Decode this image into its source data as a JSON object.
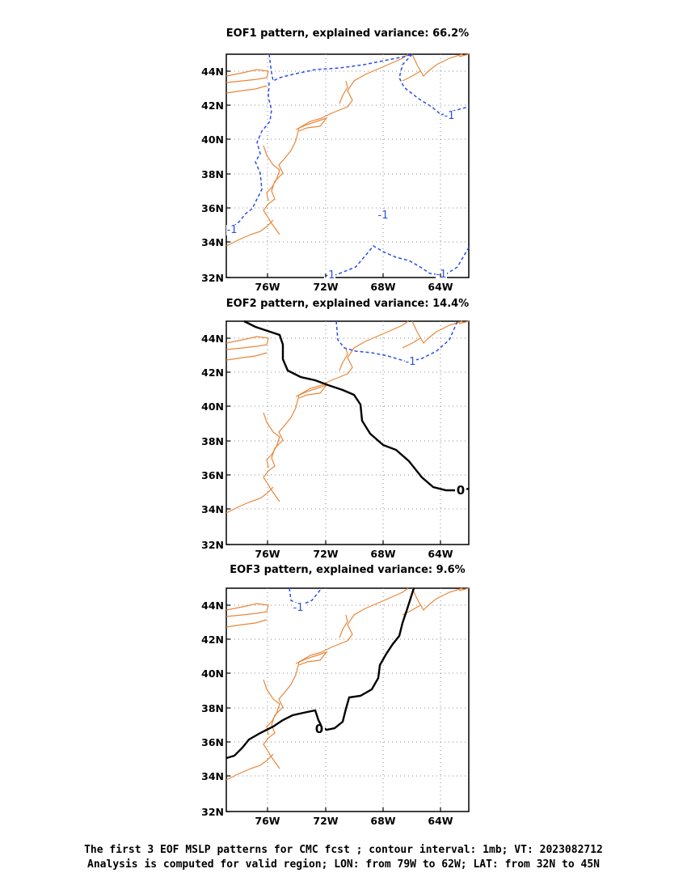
{
  "panels": [
    {
      "title": "EOF1 pattern, explained variance: 66.2%",
      "contour_labels": [
        "-1",
        "-1",
        "-1",
        "-1",
        "-1"
      ]
    },
    {
      "title": "EOF2 pattern, explained variance: 14.4%",
      "contour_labels": [
        "-1",
        "0"
      ]
    },
    {
      "title": "EOF3 pattern, explained variance: 9.6%",
      "contour_labels": [
        "-1",
        "0"
      ]
    }
  ],
  "lat_ticks": [
    "44N",
    "42N",
    "40N",
    "38N",
    "36N",
    "34N",
    "32N"
  ],
  "lon_ticks": [
    "76W",
    "72W",
    "68W",
    "64W"
  ],
  "colors": {
    "coastline": "#e8873a",
    "negative_contour": "#2a4fe6",
    "zero_contour": "#000000",
    "grid": "#888888"
  },
  "footer": {
    "line1": "The first 3 EOF MSLP patterns for CMC fcst ; contour interval: 1mb; VT: 2023082712",
    "line2": "Analysis is computed for valid region; LON: from 79W to 62W; LAT: from 32N to 45N"
  }
}
